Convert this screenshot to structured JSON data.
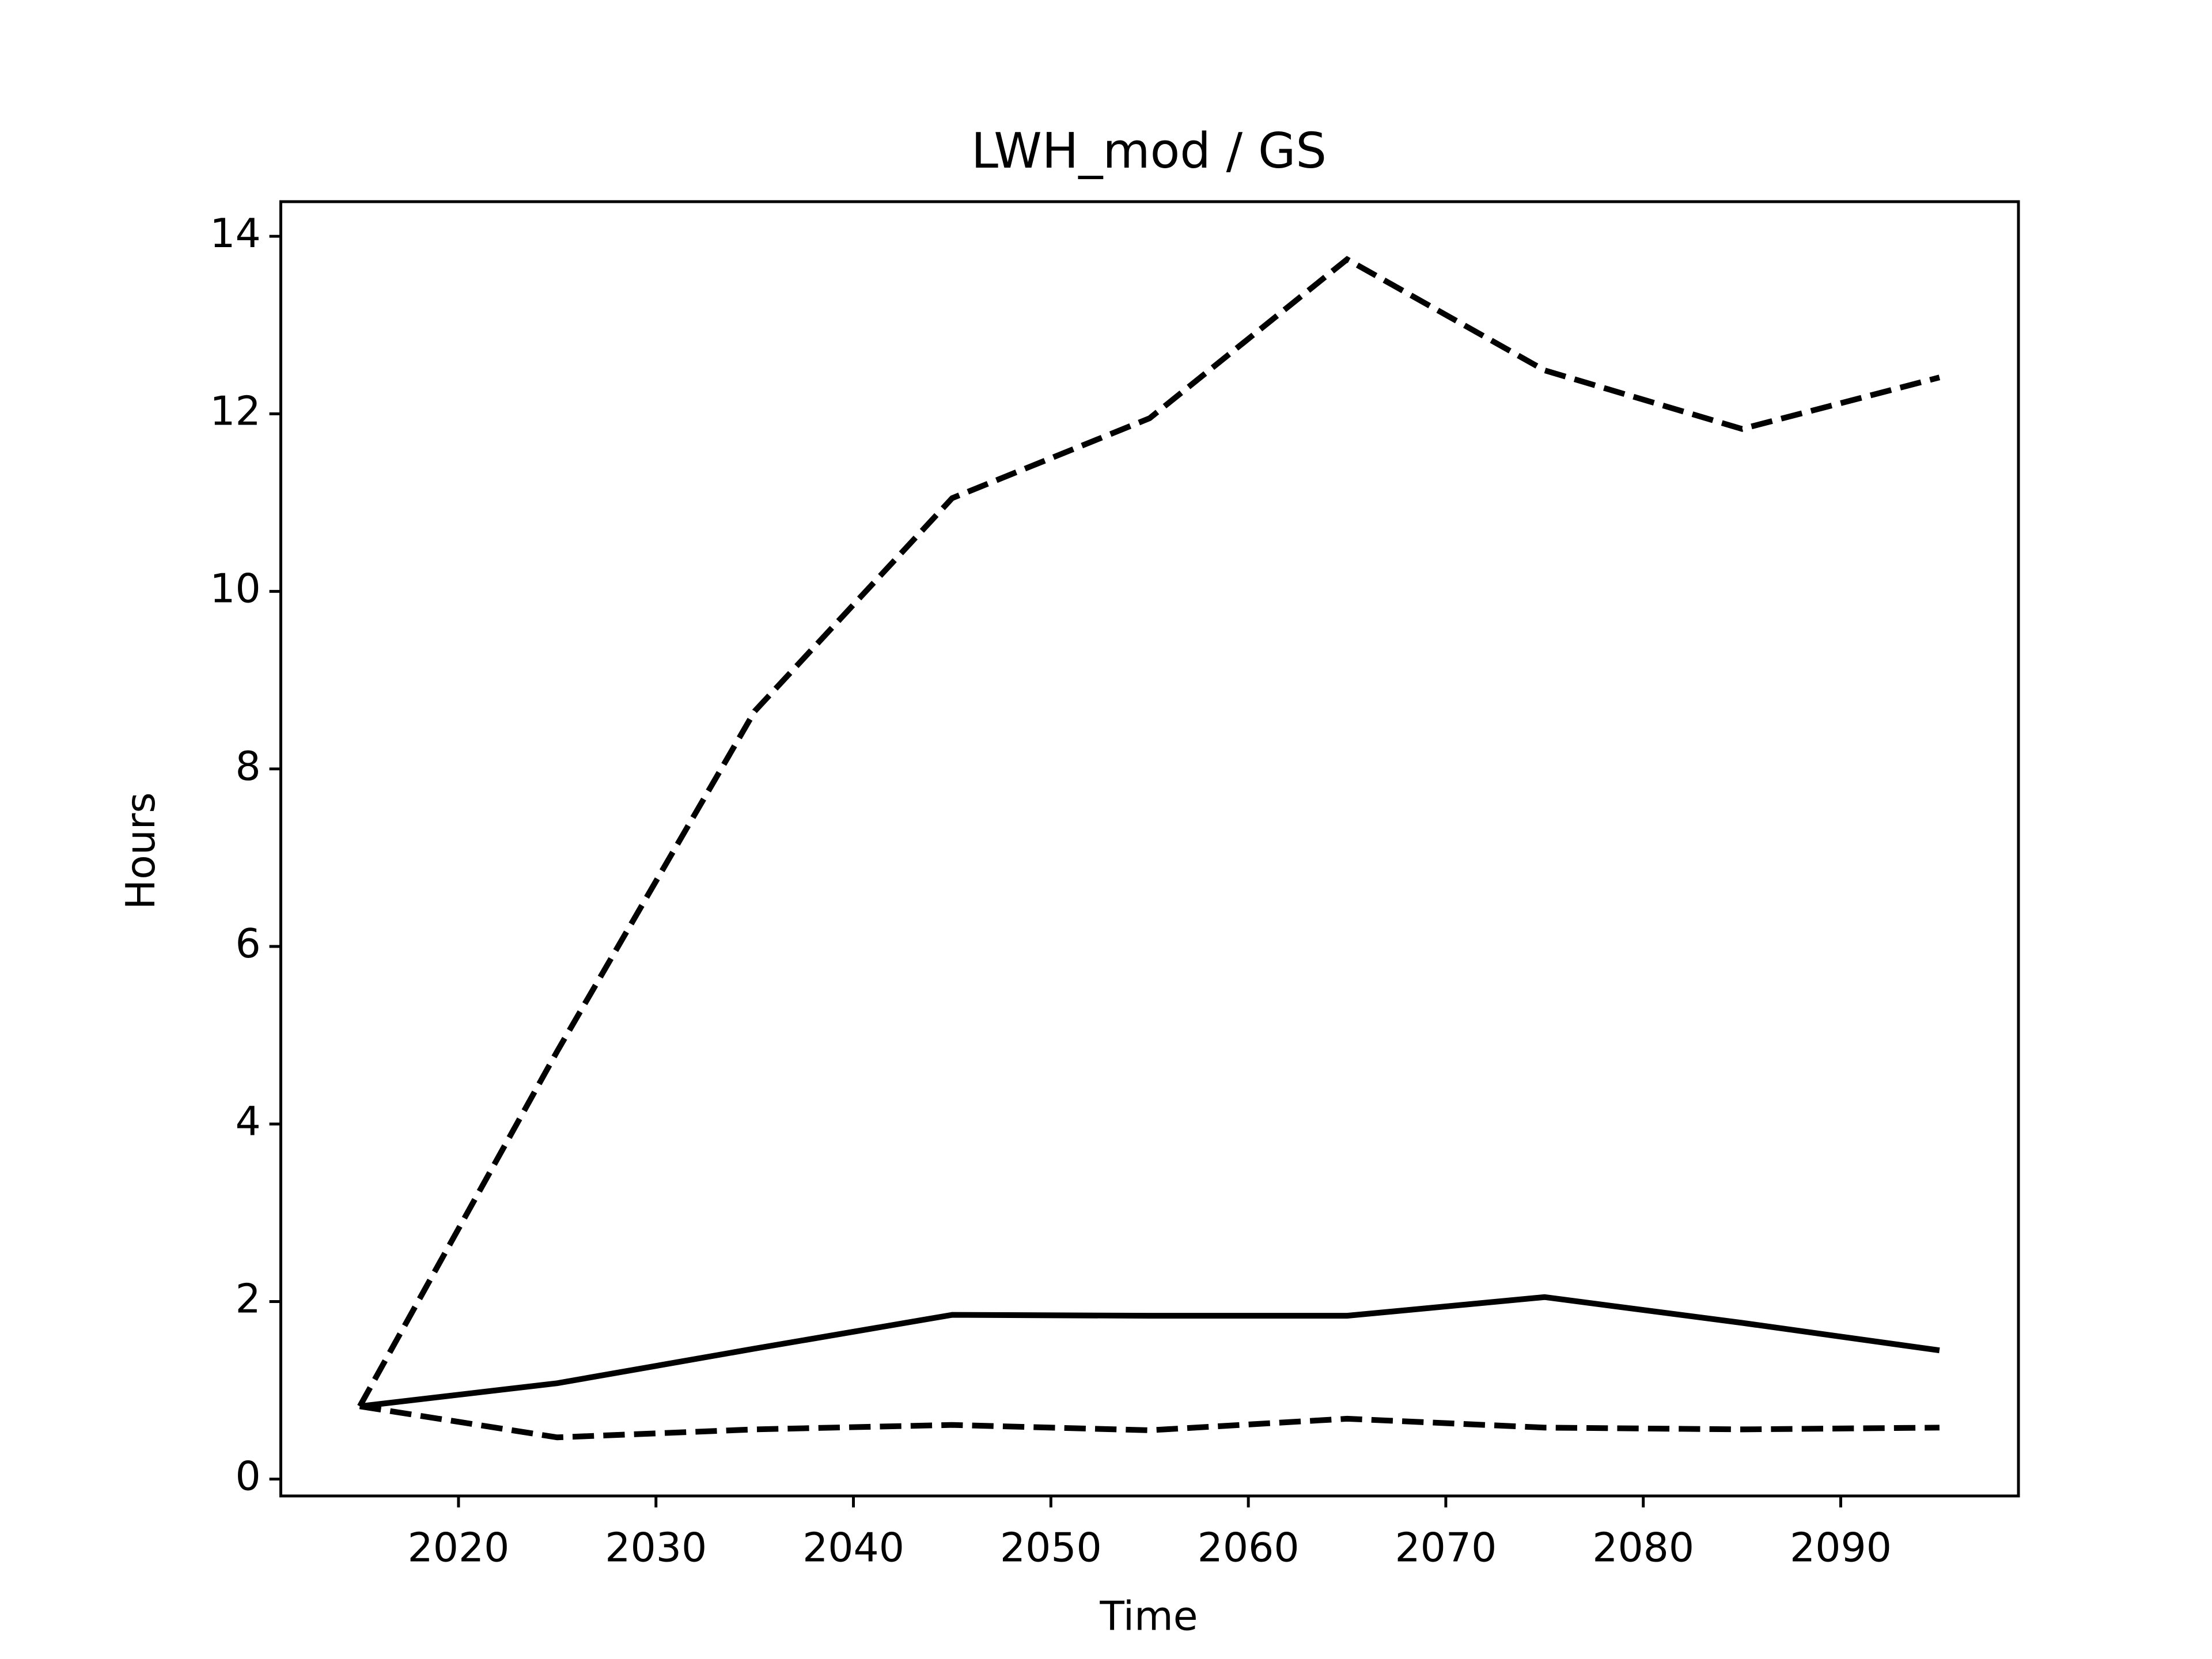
{
  "chart_data": {
    "type": "line",
    "title": "LWH_mod / GS",
    "xlabel": "Time",
    "ylabel": "Hours",
    "x": [
      2015,
      2025,
      2035,
      2045,
      2055,
      2065,
      2075,
      2085,
      2095
    ],
    "series": [
      {
        "color": "#000000",
        "dash": "dashed",
        "values": [
          0.82,
          4.82,
          8.65,
          11.05,
          11.95,
          13.74,
          12.49,
          11.83,
          12.41
        ]
      },
      {
        "color": "#000000",
        "dash": "solid",
        "values": [
          0.82,
          1.08,
          1.47,
          1.85,
          1.84,
          1.84,
          2.05,
          1.76,
          1.45
        ]
      },
      {
        "color": "#000000",
        "dash": "dashed",
        "values": [
          0.82,
          0.47,
          0.56,
          0.61,
          0.55,
          0.68,
          0.58,
          0.56,
          0.58
        ]
      }
    ],
    "xlim": [
      2011,
      2099
    ],
    "xticks": [
      2020,
      2030,
      2040,
      2050,
      2060,
      2070,
      2080,
      2090
    ],
    "ylim": [
      -0.19,
      14.39
    ],
    "yticks": [
      0,
      2,
      4,
      6,
      8,
      10,
      12,
      14
    ],
    "grid": false
  }
}
